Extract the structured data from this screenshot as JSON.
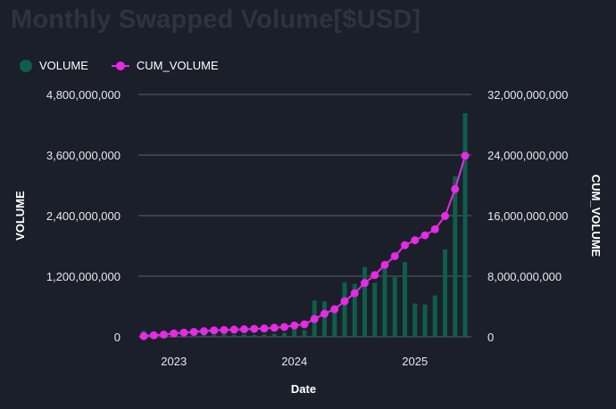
{
  "title": "Monthly Swapped Volume[$USD]",
  "colors": {
    "volume": "#0e5e4a",
    "cum_volume": "#e62ae6",
    "grid": "#5d6270",
    "background": "#1b1f29"
  },
  "legend": [
    {
      "label": "VOLUME",
      "color": "#0e5e4a",
      "icon": "dot-icon"
    },
    {
      "label": "CUM_VOLUME",
      "color": "#e62ae6",
      "icon": "line-dot-icon"
    }
  ],
  "chart_data": {
    "type": "bar",
    "title": "Monthly Swapped Volume[$USD]",
    "xlabel": "Date",
    "ylabel": "VOLUME",
    "y2label": "CUM_VOLUME",
    "ylim": [
      0,
      4800000000
    ],
    "y2lim": [
      0,
      32000000000
    ],
    "yticks": [
      "0",
      "1,200,000,000",
      "2,400,000,000",
      "3,600,000,000",
      "4,800,000,000"
    ],
    "y2ticks": [
      "0",
      "8,000,000,000",
      "16,000,000,000",
      "24,000,000,000",
      "32,000,000,000"
    ],
    "xticks": [
      "2023",
      "2024",
      "2025"
    ],
    "grid": true,
    "legend_position": "top-left",
    "categories": [
      "2022-10",
      "2022-11",
      "2022-12",
      "2023-01",
      "2023-02",
      "2023-03",
      "2023-04",
      "2023-05",
      "2023-06",
      "2023-07",
      "2023-08",
      "2023-09",
      "2023-10",
      "2023-11",
      "2023-12",
      "2024-01",
      "2024-02",
      "2024-03",
      "2024-04",
      "2024-05",
      "2024-06",
      "2024-07",
      "2024-08",
      "2024-09",
      "2024-10",
      "2024-11",
      "2024-12",
      "2025-01",
      "2025-02",
      "2025-03",
      "2025-04",
      "2025-05",
      "2025-06"
    ],
    "series": [
      {
        "name": "VOLUME",
        "type": "bar",
        "axis": "left",
        "values": [
          120000000,
          40000000,
          50000000,
          60000000,
          50000000,
          40000000,
          50000000,
          40000000,
          50000000,
          40000000,
          50000000,
          40000000,
          50000000,
          60000000,
          80000000,
          200000000,
          130000000,
          720000000,
          700000000,
          600000000,
          1080000000,
          1050000000,
          1380000000,
          1070000000,
          1350000000,
          1180000000,
          1480000000,
          660000000,
          640000000,
          820000000,
          1730000000,
          3180000000,
          4430000000
        ]
      },
      {
        "name": "CUM_VOLUME",
        "type": "line",
        "axis": "right",
        "values": [
          100000000,
          200000000,
          300000000,
          450000000,
          550000000,
          650000000,
          750000000,
          850000000,
          900000000,
          950000000,
          1000000000,
          1050000000,
          1100000000,
          1200000000,
          1300000000,
          1500000000,
          1650000000,
          2350000000,
          3050000000,
          3650000000,
          4700000000,
          5750000000,
          7100000000,
          8150000000,
          9500000000,
          10650000000,
          12100000000,
          12750000000,
          13400000000,
          14200000000,
          15950000000,
          19500000000,
          23900000000
        ]
      }
    ]
  },
  "axes_text": {
    "xlabel": "Date",
    "ylabel": "VOLUME",
    "y2label": "CUM_VOLUME"
  }
}
